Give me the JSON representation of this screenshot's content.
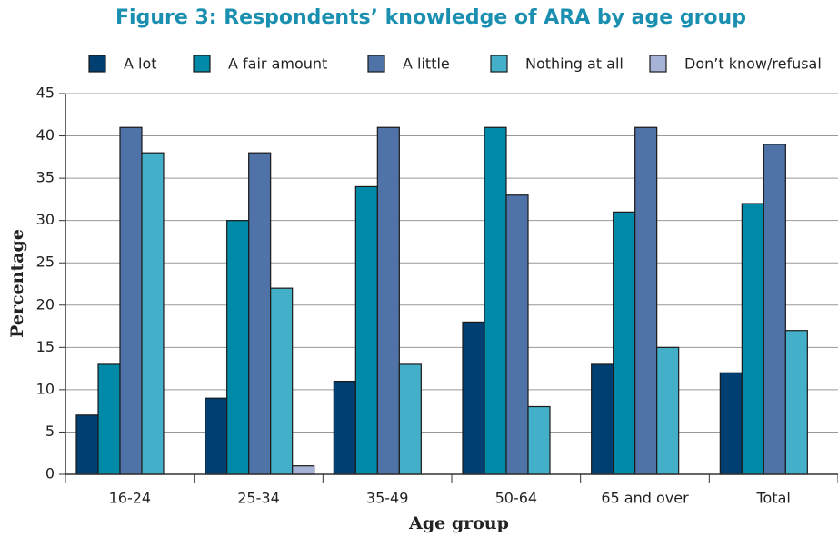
{
  "chart_data": {
    "type": "bar",
    "title": "Figure 3: Respondents’ knowledge of ARA by age group",
    "x_label": "Age group",
    "y_label": "Percentage",
    "categories": [
      "16-24",
      "25-34",
      "35-49",
      "50-64",
      "65 and over",
      "Total"
    ],
    "series": [
      {
        "name": "A lot",
        "color": "#003f72",
        "values": [
          7,
          9,
          11,
          18,
          13,
          12
        ]
      },
      {
        "name": "A fair amount",
        "color": "#008aa8",
        "values": [
          13,
          30,
          34,
          41,
          31,
          32
        ]
      },
      {
        "name": "A little",
        "color": "#4f73a6",
        "values": [
          41,
          38,
          41,
          33,
          41,
          39
        ]
      },
      {
        "name": "Nothing at all",
        "color": "#43afc8",
        "values": [
          38,
          22,
          13,
          8,
          15,
          17
        ]
      },
      {
        "name": "Don’t know/refusal",
        "color": "#a6b3d6",
        "values": [
          0,
          1,
          0,
          0,
          0,
          0
        ]
      }
    ],
    "ylim": [
      0,
      45
    ],
    "yticks": [
      0,
      5,
      10,
      15,
      20,
      25,
      30,
      35,
      40,
      45
    ],
    "grid": true,
    "legend": "top"
  }
}
